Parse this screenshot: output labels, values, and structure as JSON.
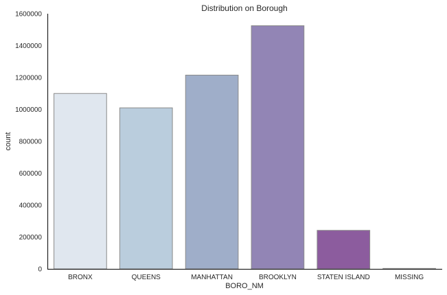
{
  "chart_data": {
    "type": "bar",
    "title": "Distribution on Borough",
    "xlabel": "BORO_NM",
    "ylabel": "count",
    "categories": [
      "BRONX",
      "QUEENS",
      "MANHATTAN",
      "BROOKLYN",
      "STATEN ISLAND",
      "MISSING"
    ],
    "values": [
      1100000,
      1010000,
      1215000,
      1525000,
      242000,
      3000
    ],
    "colors": [
      "#e0e7ef",
      "#bacddd",
      "#9faec9",
      "#9285b5",
      "#8c5c9e",
      "#7d3c8c"
    ],
    "edge_color": "#8a8a8a",
    "ylim": [
      0,
      1600000
    ],
    "yticks": [
      0,
      200000,
      400000,
      600000,
      800000,
      1000000,
      1200000,
      1400000,
      1600000
    ],
    "ytick_labels": [
      "0",
      "200000",
      "400000",
      "600000",
      "800000",
      "1000000",
      "1200000",
      "1400000",
      "1600000"
    ],
    "grid": false,
    "legend": "none"
  }
}
